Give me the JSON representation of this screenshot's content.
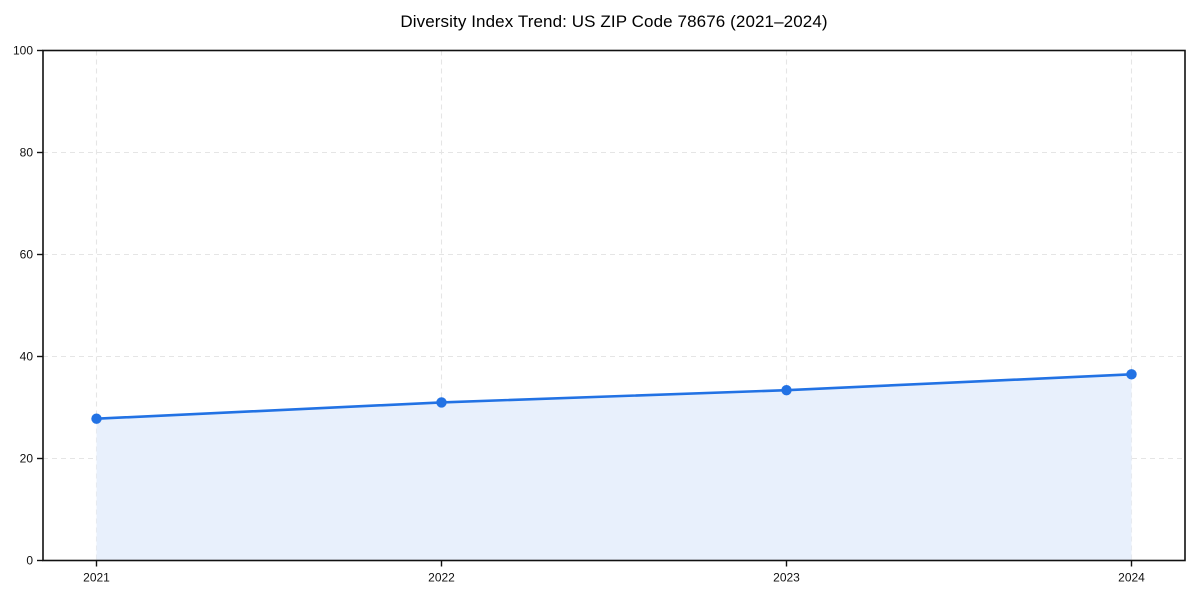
{
  "chart": {
    "title": "Diversity Index Trend: US ZIP Code 78676 (2021–2024)"
  },
  "chart_data": {
    "type": "area",
    "x": [
      "2021",
      "2022",
      "2023",
      "2024"
    ],
    "series": [
      {
        "name": "Diversity Index",
        "values": [
          27.8,
          31.0,
          33.4,
          36.5
        ]
      }
    ],
    "title": "Diversity Index Trend: US ZIP Code 78676 (2021–2024)",
    "xlabel": "",
    "ylabel": "",
    "ylim": [
      0,
      100
    ],
    "yticks": [
      0,
      20,
      40,
      60,
      80,
      100
    ],
    "grid": true,
    "grid_style": "dashed",
    "legend": "none",
    "marker": "circle",
    "colors": {
      "line": "#2272e4",
      "marker": "#2272e4",
      "fill": "#e8f0fc",
      "grid": "#e5e5e5",
      "axis": "#111111",
      "tick_label": "#111111",
      "title": "#000000",
      "background": "#ffffff"
    }
  }
}
